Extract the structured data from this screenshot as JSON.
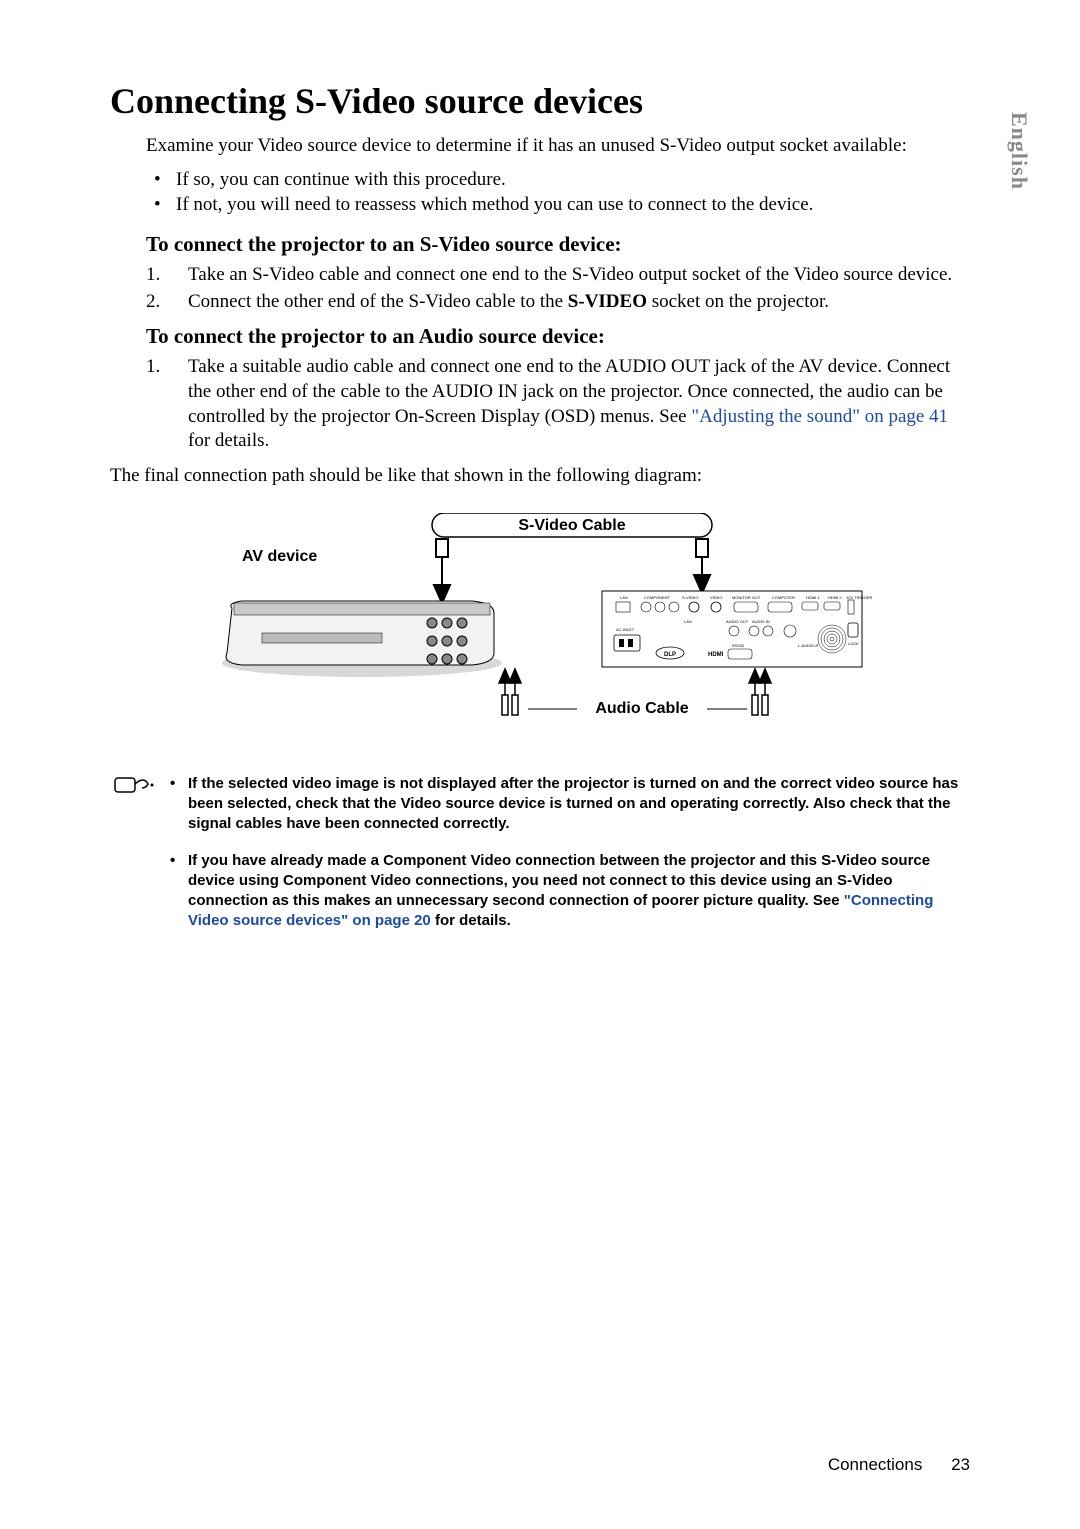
{
  "language_tab": "English",
  "title": "Connecting S-Video source devices",
  "intro": "Examine your Video source device to determine if it has an unused S-Video output socket available:",
  "intro_bullets": [
    "If so, you can continue with this procedure.",
    "If not, you will need to reassess which method you can use to connect to the device."
  ],
  "h2_svideo": "To connect the projector to an S-Video source device:",
  "svideo_steps": [
    "Take an S-Video cable and connect one end to the S-Video output socket of the Video source device.",
    "Connect the other end of the S-Video cable to the <b>S-VIDEO</b> socket on the projector."
  ],
  "h2_audio": "To connect the projector to an Audio source device:",
  "audio_steps": [
    "Take a suitable audio cable and connect one end to the AUDIO OUT jack of the AV device. Connect the other end of the cable to the AUDIO IN jack on the projector. Once connected, the audio can be controlled by the projector On-Screen Display (OSD) menus. See <span class=\"link\">\"Adjusting the sound\" on page 41</span> for details."
  ],
  "final_line": "The final connection path should be like that shown in the following diagram:",
  "diagram": {
    "label_av": "AV device",
    "label_svideo": "S-Video Cable",
    "label_audio": "Audio Cable",
    "ports": [
      "LAN",
      "COMPONENT",
      "S-VIDEO",
      "VIDEO",
      "MONITOR OUT",
      "COMPUTER",
      "HDMI 1",
      "HDMI 2",
      "12V TRIGGER"
    ],
    "ports2_left": "AC-INLET",
    "ports2_mid": [
      "LAN",
      "AUDIO OUT",
      "AUDIO IN"
    ],
    "ports2_right": [
      "RS232",
      "L-AUDIO-R"
    ],
    "lock": "LOCK",
    "badges": [
      "DLP",
      "HDMI"
    ],
    "colors": {
      "label_font": "Arial",
      "label_weight": "bold",
      "label_size": 16,
      "stroke": "#000000",
      "panel_fill": "#ffffff",
      "device_fill": "#e8e8e8"
    }
  },
  "notes": [
    "If the selected video image is not displayed after the projector is turned on and the correct video source has been selected, check that the Video source device is turned on and operating correctly. Also check that the signal cables have been connected correctly.",
    "If you have already made a Component Video connection between the projector and this S-Video source device using Component Video connections, you need not connect to this device using an S-Video connection as this makes an unnecessary second connection of poorer picture quality. See <span class=\"note-link\">\"Connecting Video source devices\" on page 20</span> for details."
  ],
  "footer": {
    "section": "Connections",
    "page": "23"
  }
}
